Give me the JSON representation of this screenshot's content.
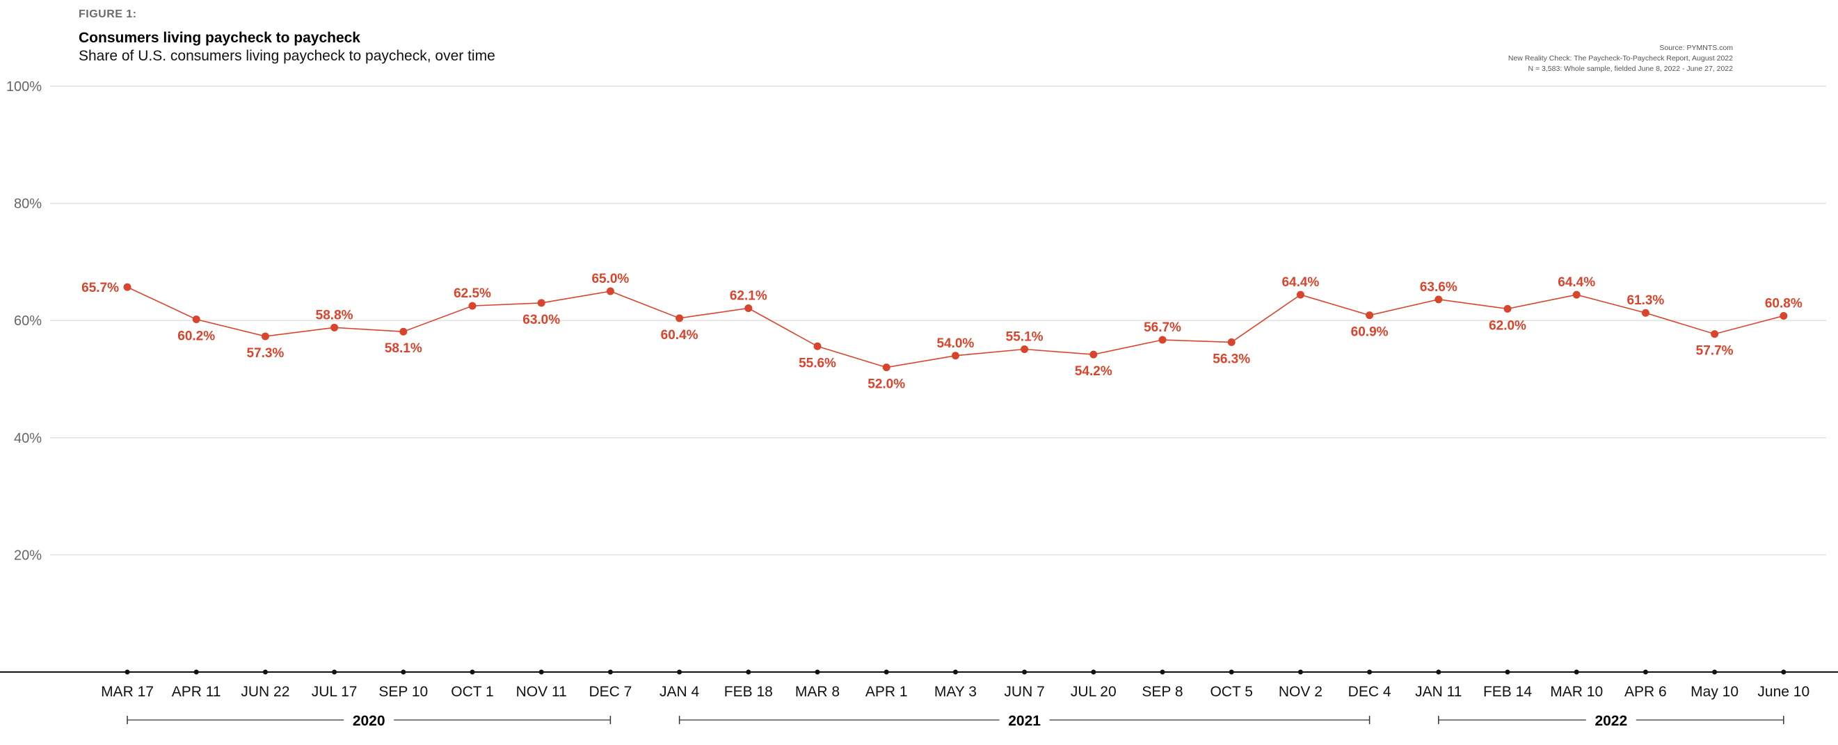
{
  "figure_label": "FIGURE 1:",
  "title": "Consumers living paycheck to paycheck",
  "subtitle": "Share of U.S. consumers living paycheck to paycheck, over time",
  "source": [
    "Source: PYMNTS.com",
    "New Reality Check: The Paycheck-To-Paycheck Report, August 2022",
    "N = 3,583: Whole sample, fielded June 8, 2022 - June 27, 2022"
  ],
  "colors": {
    "series": "#d9442c",
    "grid": "#e2e2e2",
    "axis": "#111111"
  },
  "chart_data": {
    "type": "line",
    "title": "Consumers living paycheck to paycheck",
    "ylim": [
      0,
      100
    ],
    "yticks": [
      "20%",
      "40%",
      "60%",
      "80%",
      "100%"
    ],
    "grid": true,
    "categories": [
      "MAR 17",
      "APR 11",
      "JUN 22",
      "JUL 17",
      "SEP 10",
      "OCT 1",
      "NOV 11",
      "DEC 7",
      "JAN 4",
      "FEB 18",
      "MAR 8",
      "APR 1",
      "MAY 3",
      "JUN 7",
      "JUL 20",
      "SEP 8",
      "OCT 5",
      "NOV 2",
      "DEC 4",
      "JAN 11",
      "FEB 14",
      "MAR 10",
      "APR 6",
      "May 10",
      "June 10"
    ],
    "values": [
      65.7,
      60.2,
      57.3,
      58.8,
      58.1,
      62.5,
      63.0,
      65.0,
      60.4,
      62.1,
      55.6,
      52.0,
      54.0,
      55.1,
      54.2,
      56.7,
      56.3,
      64.4,
      60.9,
      63.6,
      62.0,
      64.4,
      61.3,
      57.7,
      60.8
    ],
    "labels": [
      "65.7%",
      "60.2%",
      "57.3%",
      "58.8%",
      "58.1%",
      "62.5%",
      "63.0%",
      "65.0%",
      "60.4%",
      "62.1%",
      "55.6%",
      "52.0%",
      "54.0%",
      "55.1%",
      "54.2%",
      "56.7%",
      "56.3%",
      "64.4%",
      "60.9%",
      "63.6%",
      "62.0%",
      "64.4%",
      "61.3%",
      "57.7%",
      "60.8%"
    ],
    "years": [
      {
        "label": "2020",
        "start": 0,
        "end": 7
      },
      {
        "label": "2021",
        "start": 8,
        "end": 18
      },
      {
        "label": "2022",
        "start": 19,
        "end": 24
      }
    ]
  }
}
